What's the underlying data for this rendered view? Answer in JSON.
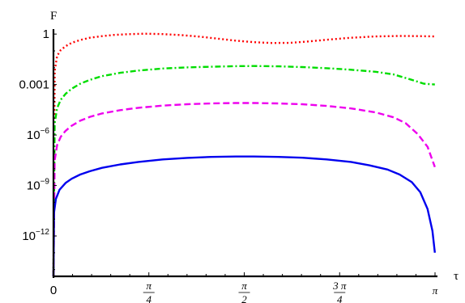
{
  "chart_data": {
    "type": "line",
    "xlabel": "τ",
    "ylabel": "F",
    "y_scale": "log",
    "xlim": [
      0,
      3.14159
    ],
    "ylim_log10": [
      -14.4,
      0.2
    ],
    "grid": false,
    "x_ticks": [
      {
        "value": 0,
        "label": "0"
      },
      {
        "value": 0.785398,
        "num": "π",
        "den": "4"
      },
      {
        "value": 1.570796,
        "num": "π",
        "den": "2"
      },
      {
        "value": 2.356194,
        "num": "3 π",
        "den": "4"
      },
      {
        "value": 3.141593,
        "label": "π"
      }
    ],
    "y_ticks": [
      {
        "log10": 0,
        "label": "1"
      },
      {
        "log10": -3,
        "label": "0.001"
      },
      {
        "log10": -6,
        "base": "10",
        "exp": "−6"
      },
      {
        "log10": -9,
        "base": "10",
        "exp": "−9"
      },
      {
        "log10": -12,
        "base": "10",
        "exp": "−12"
      }
    ],
    "series": [
      {
        "color": "#ff0000",
        "dash": "2,3",
        "points": [
          [
            0.0,
            -14.5
          ],
          [
            0.01,
            -2.2
          ],
          [
            0.03,
            -1.3
          ],
          [
            0.06,
            -0.95
          ],
          [
            0.1,
            -0.72
          ],
          [
            0.15,
            -0.52
          ],
          [
            0.22,
            -0.35
          ],
          [
            0.3,
            -0.22
          ],
          [
            0.4,
            -0.12
          ],
          [
            0.5,
            -0.05
          ],
          [
            0.6,
            -0.01
          ],
          [
            0.75,
            0.02
          ],
          [
            0.9,
            0.0
          ],
          [
            1.05,
            -0.06
          ],
          [
            1.2,
            -0.15
          ],
          [
            1.35,
            -0.27
          ],
          [
            1.5,
            -0.39
          ],
          [
            1.65,
            -0.48
          ],
          [
            1.8,
            -0.53
          ],
          [
            1.95,
            -0.52
          ],
          [
            2.1,
            -0.44
          ],
          [
            2.25,
            -0.34
          ],
          [
            2.45,
            -0.22
          ],
          [
            2.65,
            -0.14
          ],
          [
            2.85,
            -0.11
          ],
          [
            3.0,
            -0.12
          ],
          [
            3.14,
            -0.14
          ]
        ]
      },
      {
        "color": "#00dd00",
        "dash": "7,3,2,3",
        "points": [
          [
            0.0,
            -14.5
          ],
          [
            0.01,
            -5.3
          ],
          [
            0.03,
            -4.4
          ],
          [
            0.06,
            -3.9
          ],
          [
            0.1,
            -3.55
          ],
          [
            0.15,
            -3.25
          ],
          [
            0.22,
            -2.95
          ],
          [
            0.3,
            -2.72
          ],
          [
            0.4,
            -2.5
          ],
          [
            0.55,
            -2.3
          ],
          [
            0.7,
            -2.17
          ],
          [
            0.9,
            -2.05
          ],
          [
            1.1,
            -1.98
          ],
          [
            1.3,
            -1.94
          ],
          [
            1.5,
            -1.91
          ],
          [
            1.65,
            -1.9
          ],
          [
            1.85,
            -1.92
          ],
          [
            2.05,
            -1.96
          ],
          [
            2.25,
            -2.03
          ],
          [
            2.45,
            -2.12
          ],
          [
            2.65,
            -2.24
          ],
          [
            2.8,
            -2.4
          ],
          [
            2.95,
            -2.72
          ],
          [
            3.05,
            -2.95
          ],
          [
            3.14,
            -3.0
          ]
        ]
      },
      {
        "color": "#ee00ee",
        "dash": "8,4",
        "points": [
          [
            0.0,
            -14.5
          ],
          [
            0.01,
            -7.5
          ],
          [
            0.03,
            -6.6
          ],
          [
            0.06,
            -6.1
          ],
          [
            0.1,
            -5.75
          ],
          [
            0.15,
            -5.45
          ],
          [
            0.22,
            -5.15
          ],
          [
            0.3,
            -4.92
          ],
          [
            0.4,
            -4.72
          ],
          [
            0.55,
            -4.52
          ],
          [
            0.7,
            -4.38
          ],
          [
            0.9,
            -4.25
          ],
          [
            1.1,
            -4.17
          ],
          [
            1.3,
            -4.12
          ],
          [
            1.5,
            -4.1
          ],
          [
            1.65,
            -4.1
          ],
          [
            1.85,
            -4.12
          ],
          [
            2.05,
            -4.17
          ],
          [
            2.25,
            -4.27
          ],
          [
            2.45,
            -4.42
          ],
          [
            2.65,
            -4.65
          ],
          [
            2.8,
            -4.95
          ],
          [
            2.9,
            -5.3
          ],
          [
            3.0,
            -5.95
          ],
          [
            3.08,
            -6.7
          ],
          [
            3.14,
            -7.9
          ]
        ]
      },
      {
        "color": "#0000ee",
        "dash": "",
        "points": [
          [
            0.0,
            -14.5
          ],
          [
            0.005,
            -10.6
          ],
          [
            0.02,
            -9.8
          ],
          [
            0.05,
            -9.25
          ],
          [
            0.1,
            -8.85
          ],
          [
            0.15,
            -8.6
          ],
          [
            0.22,
            -8.35
          ],
          [
            0.3,
            -8.15
          ],
          [
            0.4,
            -7.95
          ],
          [
            0.55,
            -7.75
          ],
          [
            0.7,
            -7.6
          ],
          [
            0.9,
            -7.45
          ],
          [
            1.1,
            -7.36
          ],
          [
            1.3,
            -7.3
          ],
          [
            1.5,
            -7.28
          ],
          [
            1.65,
            -7.28
          ],
          [
            1.85,
            -7.3
          ],
          [
            2.05,
            -7.35
          ],
          [
            2.25,
            -7.45
          ],
          [
            2.45,
            -7.6
          ],
          [
            2.6,
            -7.8
          ],
          [
            2.75,
            -8.05
          ],
          [
            2.85,
            -8.35
          ],
          [
            2.95,
            -8.8
          ],
          [
            3.02,
            -9.4
          ],
          [
            3.08,
            -10.4
          ],
          [
            3.12,
            -11.7
          ],
          [
            3.14,
            -13.0
          ]
        ]
      }
    ]
  }
}
